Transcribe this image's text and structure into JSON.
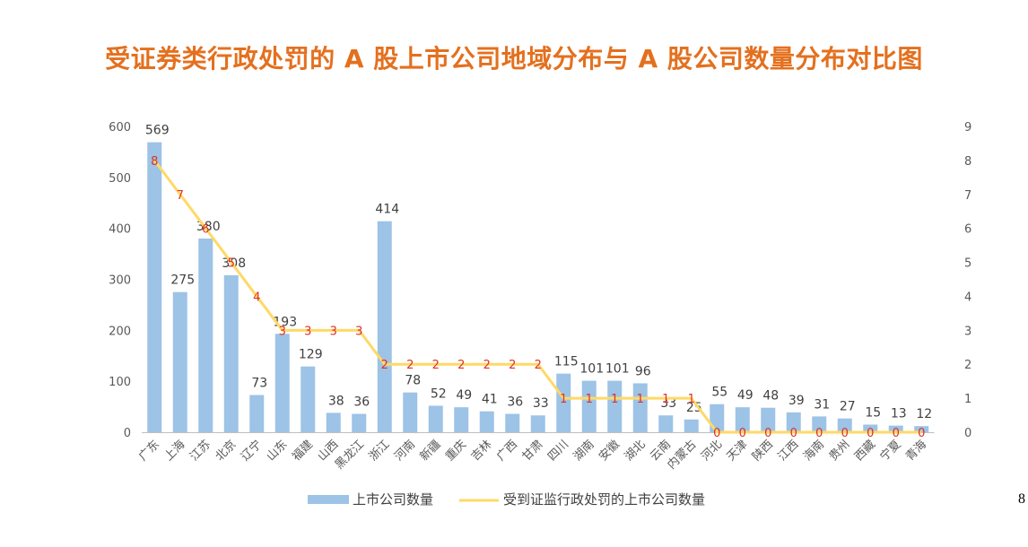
{
  "page": {
    "number": "8"
  },
  "chart_data": {
    "type": "bar+line",
    "title": "受证券类行政处罚的 A 股上市公司地域分布与 A 股公司数量分布对比图",
    "categories": [
      "广东",
      "上海",
      "江苏",
      "北京",
      "辽宁",
      "山东",
      "福建",
      "山西",
      "黑龙江",
      "浙江",
      "河南",
      "新疆",
      "重庆",
      "吉林",
      "广西",
      "甘肃",
      "四川",
      "湖南",
      "安徽",
      "湖北",
      "云南",
      "内蒙古",
      "河北",
      "天津",
      "陕西",
      "江西",
      "海南",
      "贵州",
      "西藏",
      "宁夏",
      "青海"
    ],
    "series": [
      {
        "name": "上市公司数量",
        "type": "bar",
        "axis": "left",
        "color": "#9dc3e6",
        "values": [
          569,
          275,
          380,
          308,
          73,
          193,
          129,
          38,
          36,
          414,
          78,
          52,
          49,
          41,
          36,
          33,
          115,
          101,
          101,
          96,
          33,
          25,
          55,
          49,
          48,
          39,
          31,
          27,
          15,
          13,
          12
        ]
      },
      {
        "name": "受到证监行政处罚的上市公司数量",
        "type": "line",
        "axis": "right",
        "color": "#ffd966",
        "values": [
          8,
          7,
          6,
          5,
          4,
          3,
          3,
          3,
          3,
          2,
          2,
          2,
          2,
          2,
          2,
          2,
          1,
          1,
          1,
          1,
          1,
          1,
          0,
          0,
          0,
          0,
          0,
          0,
          0,
          0,
          0
        ]
      }
    ],
    "y_left": {
      "min": 0,
      "max": 600,
      "ticks": [
        0,
        100,
        200,
        300,
        400,
        500,
        600
      ]
    },
    "y_right": {
      "min": 0,
      "max": 9,
      "ticks": [
        0,
        1,
        2,
        3,
        4,
        5,
        6,
        7,
        8,
        9
      ]
    },
    "legend_position": "bottom",
    "grid": false
  }
}
